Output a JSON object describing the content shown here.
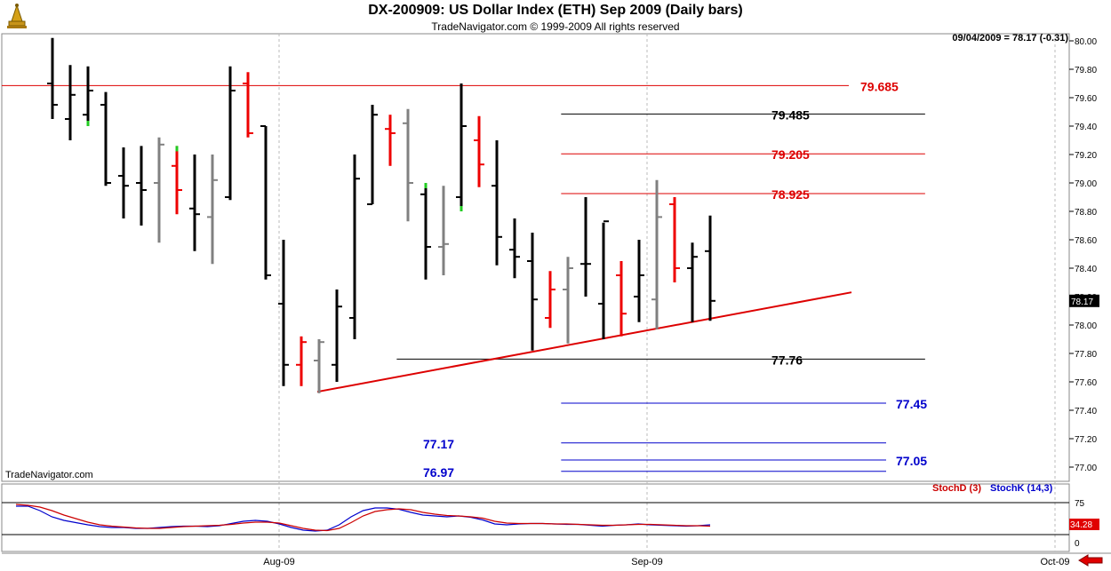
{
  "header": {
    "title": "DX-200909:  US Dollar Index (ETH) Sep 2009  (Daily bars)",
    "subtitle": "TradeNavigator.com © 1999-2009 All rights reserved",
    "quote": "09/04/2009 = 78.17 (-0.31)",
    "watermark": "TradeNavigator.com"
  },
  "colors": {
    "up_bar": "#000000",
    "down_bar": "#ee0000",
    "neutral_bar": "#808080",
    "accent_green": "#22cc22",
    "stoch_d": "#cc0000",
    "stoch_k": "#0000cc",
    "level_red": "#dd0000",
    "level_blue": "#0000cc",
    "trendline": "#dd0000"
  },
  "chart_data": {
    "type": "ohlc-bar",
    "ylim": [
      76.9,
      80.05
    ],
    "yticks": [
      "80.00",
      "79.80",
      "79.60",
      "79.40",
      "79.20",
      "79.00",
      "78.80",
      "78.60",
      "78.40",
      "78.20",
      "78.00",
      "77.80",
      "77.60",
      "77.40",
      "77.20",
      "77.00"
    ],
    "last_price": "78.17",
    "xlabels": [
      "Aug-09",
      "Sep-09",
      "Oct-09"
    ],
    "bars": [
      {
        "o": 79.7,
        "h": 80.02,
        "l": 79.45,
        "c": 79.55,
        "col": "black"
      },
      {
        "o": 79.45,
        "h": 79.83,
        "l": 79.3,
        "c": 79.62,
        "col": "black"
      },
      {
        "o": 79.48,
        "h": 79.82,
        "l": 79.4,
        "c": 79.65,
        "col": "black",
        "g": "low"
      },
      {
        "o": 79.55,
        "h": 79.64,
        "l": 78.98,
        "c": 79.0,
        "col": "black"
      },
      {
        "o": 79.05,
        "h": 79.25,
        "l": 78.75,
        "c": 78.98,
        "col": "black"
      },
      {
        "o": 79.0,
        "h": 79.26,
        "l": 78.7,
        "c": 78.95,
        "col": "black"
      },
      {
        "o": 79.0,
        "h": 79.32,
        "l": 78.58,
        "c": 79.27,
        "col": "gray"
      },
      {
        "o": 79.12,
        "h": 79.26,
        "l": 78.78,
        "c": 78.95,
        "col": "red",
        "g": "high"
      },
      {
        "o": 78.82,
        "h": 79.2,
        "l": 78.52,
        "c": 78.78,
        "col": "black"
      },
      {
        "o": 78.76,
        "h": 79.2,
        "l": 78.43,
        "c": 79.02,
        "col": "gray"
      },
      {
        "o": 78.9,
        "h": 79.82,
        "l": 78.88,
        "c": 79.65,
        "col": "black"
      },
      {
        "o": 79.7,
        "h": 79.78,
        "l": 79.32,
        "c": 79.35,
        "col": "red"
      },
      {
        "o": 79.4,
        "h": 79.4,
        "l": 78.32,
        "c": 78.35,
        "col": "black"
      },
      {
        "o": 78.15,
        "h": 78.6,
        "l": 77.57,
        "c": 77.72,
        "col": "black"
      },
      {
        "o": 77.72,
        "h": 77.92,
        "l": 77.57,
        "c": 77.88,
        "col": "red"
      },
      {
        "o": 77.75,
        "h": 77.9,
        "l": 77.52,
        "c": 77.88,
        "col": "gray"
      },
      {
        "o": 77.72,
        "h": 78.25,
        "l": 77.6,
        "c": 78.13,
        "col": "black"
      },
      {
        "o": 78.05,
        "h": 79.2,
        "l": 77.9,
        "c": 79.03,
        "col": "black"
      },
      {
        "o": 78.85,
        "h": 79.55,
        "l": 78.85,
        "c": 79.48,
        "col": "black"
      },
      {
        "o": 79.38,
        "h": 79.48,
        "l": 79.12,
        "c": 79.35,
        "col": "red"
      },
      {
        "o": 79.42,
        "h": 79.52,
        "l": 78.73,
        "c": 79.0,
        "col": "gray"
      },
      {
        "o": 78.92,
        "h": 79.0,
        "l": 78.32,
        "c": 78.55,
        "col": "black",
        "g": "high"
      },
      {
        "o": 78.55,
        "h": 78.98,
        "l": 78.35,
        "c": 78.57,
        "col": "gray"
      },
      {
        "o": 78.9,
        "h": 79.7,
        "l": 78.8,
        "c": 79.4,
        "col": "black",
        "g": "low"
      },
      {
        "o": 79.3,
        "h": 79.47,
        "l": 78.97,
        "c": 79.13,
        "col": "red"
      },
      {
        "o": 78.98,
        "h": 79.3,
        "l": 78.42,
        "c": 78.62,
        "col": "black"
      },
      {
        "o": 78.53,
        "h": 78.75,
        "l": 78.33,
        "c": 78.48,
        "col": "black"
      },
      {
        "o": 78.45,
        "h": 78.65,
        "l": 77.82,
        "c": 78.18,
        "col": "black"
      },
      {
        "o": 78.05,
        "h": 78.38,
        "l": 77.98,
        "c": 78.25,
        "col": "red"
      },
      {
        "o": 78.25,
        "h": 78.48,
        "l": 77.87,
        "c": 78.4,
        "col": "gray"
      },
      {
        "o": 78.43,
        "h": 78.9,
        "l": 78.2,
        "c": 78.43,
        "col": "black"
      },
      {
        "o": 78.15,
        "h": 78.72,
        "l": 77.9,
        "c": 78.73,
        "col": "black"
      },
      {
        "o": 78.35,
        "h": 78.45,
        "l": 77.92,
        "c": 78.08,
        "col": "red"
      },
      {
        "o": 78.2,
        "h": 78.6,
        "l": 78.02,
        "c": 78.35,
        "col": "black"
      },
      {
        "o": 78.18,
        "h": 79.02,
        "l": 77.97,
        "c": 78.76,
        "col": "gray"
      },
      {
        "o": 78.85,
        "h": 78.9,
        "l": 78.3,
        "c": 78.4,
        "col": "red"
      },
      {
        "o": 78.4,
        "h": 78.58,
        "l": 78.02,
        "c": 78.48,
        "col": "black"
      },
      {
        "o": 78.52,
        "h": 78.77,
        "l": 78.03,
        "c": 78.17,
        "col": "black"
      }
    ],
    "levels": [
      {
        "price": 79.685,
        "label": "79.685",
        "color": "red",
        "x1": 0.0,
        "x2": 0.995,
        "label_side": "right"
      },
      {
        "price": 79.485,
        "label": "79.485",
        "color": "black",
        "x1": 0.524,
        "x2": 0.865,
        "label_side": "right"
      },
      {
        "price": 79.205,
        "label": "79.205",
        "color": "red",
        "x1": 0.524,
        "x2": 0.865,
        "label_side": "right"
      },
      {
        "price": 78.925,
        "label": "78.925",
        "color": "red",
        "x1": 0.524,
        "x2": 0.865,
        "label_side": "right"
      },
      {
        "price": 77.76,
        "label": "77.76",
        "color": "black",
        "x1": 0.37,
        "x2": 0.865,
        "label_side": "right"
      },
      {
        "price": 77.45,
        "label": "77.45",
        "color": "blue",
        "x1": 0.524,
        "x2": 1.0,
        "label_side": "right"
      },
      {
        "price": 77.17,
        "label": "77.17",
        "color": "blue",
        "x1": 0.524,
        "x2": 1.0,
        "label_side": "left"
      },
      {
        "price": 77.05,
        "label": "77.05",
        "color": "blue",
        "x1": 0.524,
        "x2": 1.0,
        "label_side": "right"
      },
      {
        "price": 76.97,
        "label": "76.97",
        "color": "blue",
        "x1": 0.524,
        "x2": 1.0,
        "label_side": "left"
      }
    ],
    "trendline": {
      "p1": 77.53,
      "p2": 78.23
    },
    "stochastic": {
      "label_d": "StochD (3)",
      "label_k": "StochK (14,3)",
      "yticks": [
        "75",
        "0"
      ],
      "last_value": "34.28",
      "k": [
        72,
        72,
        62,
        48,
        40,
        35,
        30,
        26,
        24,
        24,
        22,
        22,
        24,
        26,
        27,
        27,
        26,
        28,
        33,
        38,
        40,
        38,
        32,
        24,
        18,
        16,
        18,
        30,
        48,
        62,
        68,
        68,
        65,
        58,
        52,
        50,
        48,
        50,
        47,
        41,
        32,
        30,
        32,
        33,
        33,
        32,
        31,
        31,
        29,
        27,
        29,
        30,
        32,
        30,
        29,
        28,
        27,
        28,
        30
      ],
      "d": [
        76,
        74,
        70,
        62,
        52,
        44,
        36,
        30,
        27,
        25,
        23,
        22,
        22,
        24,
        26,
        27,
        28,
        29,
        31,
        34,
        36,
        36,
        34,
        28,
        22,
        18,
        17,
        22,
        35,
        50,
        60,
        64,
        66,
        64,
        58,
        54,
        51,
        50,
        48,
        45,
        38,
        34,
        33,
        33,
        33,
        32,
        32,
        31,
        30,
        29,
        29,
        30,
        31,
        31,
        30,
        29,
        28,
        28,
        27
      ]
    }
  }
}
